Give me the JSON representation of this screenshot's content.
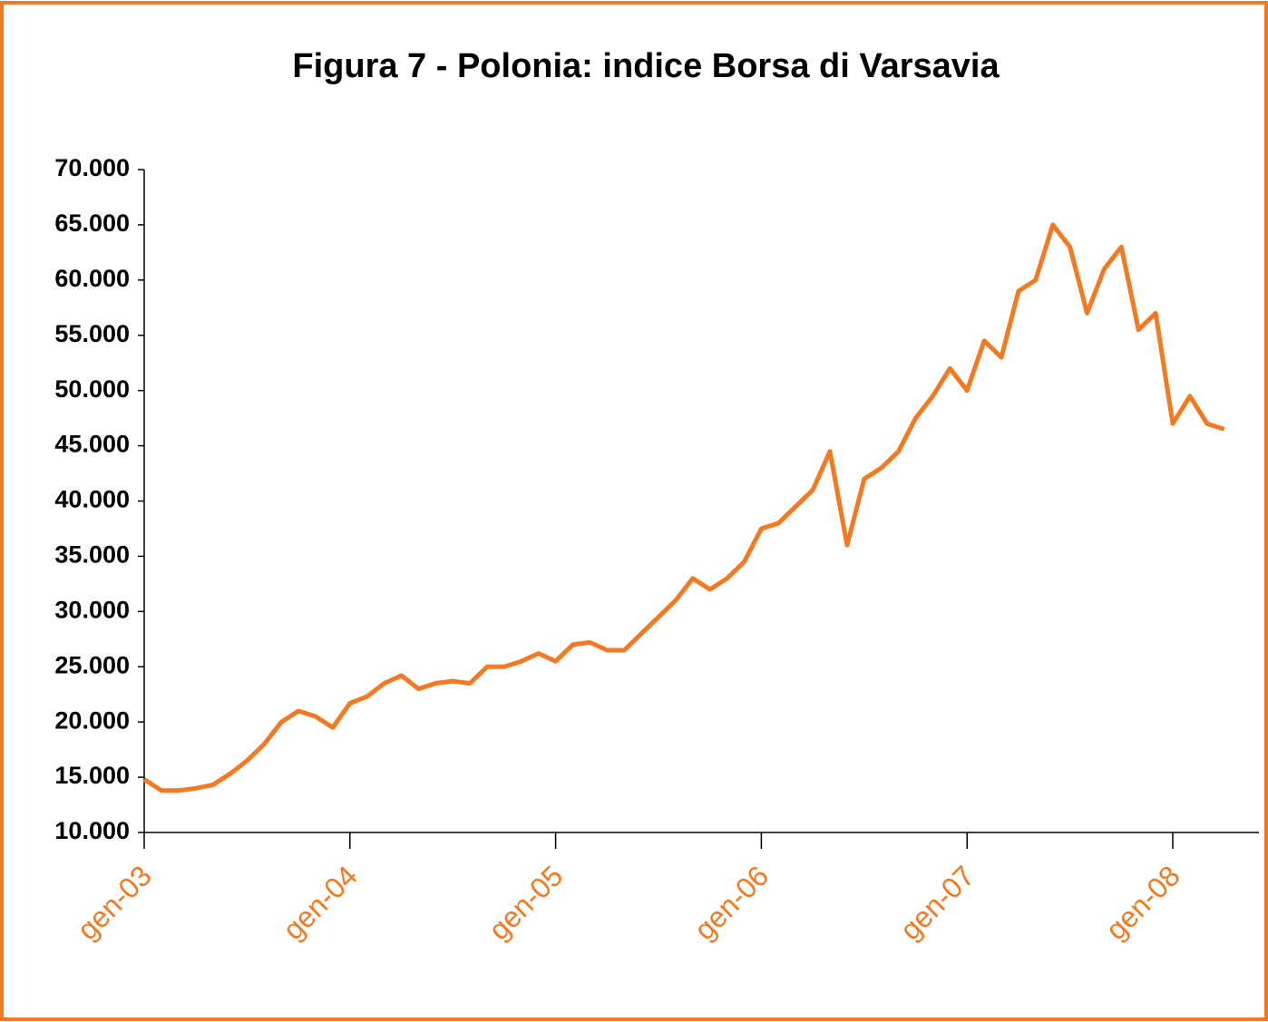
{
  "chart_data": {
    "type": "line",
    "title": "Figura 7 - Polonia: indice Borsa di Varsavia",
    "categories": [
      "gen-03",
      null,
      null,
      null,
      null,
      null,
      null,
      null,
      null,
      null,
      null,
      null,
      "gen-04",
      null,
      null,
      null,
      null,
      null,
      null,
      null,
      null,
      null,
      null,
      null,
      "gen-05",
      null,
      null,
      null,
      null,
      null,
      null,
      null,
      null,
      null,
      null,
      null,
      "gen-06",
      null,
      null,
      null,
      null,
      null,
      null,
      null,
      null,
      null,
      null,
      null,
      "gen-07",
      null,
      null,
      null,
      null,
      null,
      null,
      null,
      null,
      null,
      null,
      null,
      "gen-08",
      null,
      null,
      null
    ],
    "values": [
      14800,
      13800,
      13800,
      14000,
      14300,
      15300,
      16500,
      18000,
      20000,
      21000,
      20500,
      19500,
      21700,
      22300,
      23500,
      24200,
      23000,
      23500,
      23700,
      23500,
      25000,
      25000,
      25500,
      26200,
      25500,
      27000,
      27200,
      26500,
      26500,
      28000,
      29500,
      31000,
      33000,
      32000,
      33000,
      34500,
      37500,
      38000,
      39500,
      41000,
      44500,
      36000,
      42000,
      43000,
      44500,
      47500,
      49500,
      52000,
      50000,
      54500,
      53000,
      59000,
      60000,
      65000,
      63000,
      57000,
      61000,
      63000,
      55500,
      57000,
      47000,
      49500,
      47000,
      46500
    ],
    "color": "#f47920",
    "ylim": [
      10000,
      70000
    ],
    "yticks": [
      {
        "value": 10000,
        "label": "10.000"
      },
      {
        "value": 15000,
        "label": "15.000"
      },
      {
        "value": 20000,
        "label": "20.000"
      },
      {
        "value": 25000,
        "label": "25.000"
      },
      {
        "value": 30000,
        "label": "30.000"
      },
      {
        "value": 35000,
        "label": "35.000"
      },
      {
        "value": 40000,
        "label": "40.000"
      },
      {
        "value": 45000,
        "label": "45.000"
      },
      {
        "value": 50000,
        "label": "50.000"
      },
      {
        "value": 55000,
        "label": "55.000"
      },
      {
        "value": 60000,
        "label": "60.000"
      },
      {
        "value": 65000,
        "label": "65.000"
      },
      {
        "value": 70000,
        "label": "70.000"
      }
    ]
  }
}
